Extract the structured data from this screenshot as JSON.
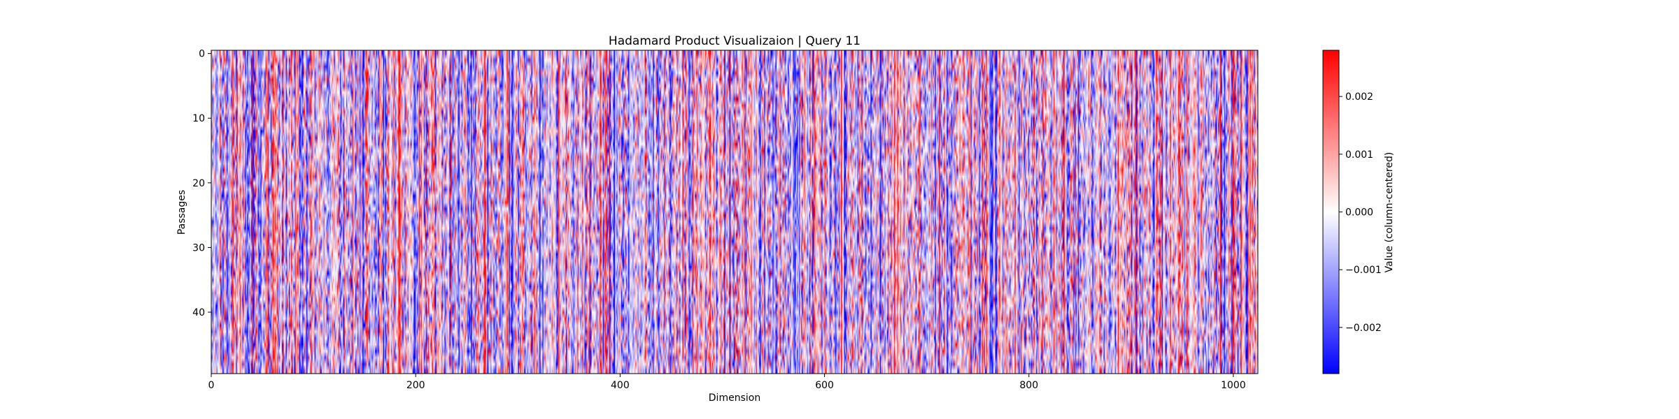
{
  "chart_data": {
    "type": "heatmap",
    "title": "Hadamard Product Visualizaion | Query 11",
    "xlabel": "Dimension",
    "ylabel": "Passages",
    "x_range": [
      0,
      1024
    ],
    "y_range": [
      0,
      50
    ],
    "x_ticks": [
      0,
      200,
      400,
      600,
      800,
      1000
    ],
    "y_ticks": [
      0,
      10,
      20,
      30,
      40
    ],
    "colormap": "bwr",
    "colorbar": {
      "label": "Value (column-centered)",
      "range": [
        -0.0028,
        0.0028
      ],
      "ticks": [
        -0.002,
        -0.001,
        0.0,
        0.001,
        0.002
      ],
      "tick_labels": [
        "−0.002",
        "−0.001",
        "0.000",
        "0.001",
        "0.002"
      ],
      "colors": {
        "low": "#0000ff",
        "mid": "#ffffff",
        "high": "#ff0000"
      }
    },
    "grid": false,
    "n_rows": 50,
    "n_cols": 1024,
    "values_note": "random-looking field of column-centered values; individual cells not legible"
  }
}
